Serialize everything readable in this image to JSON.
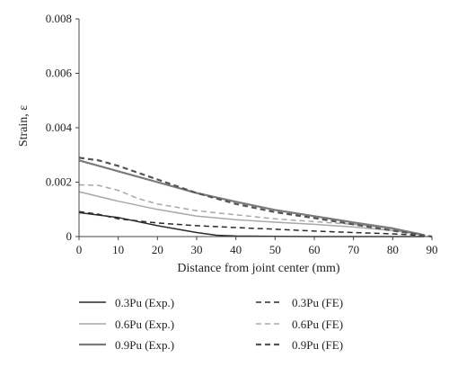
{
  "chart_data": {
    "type": "line",
    "xlabel": "Distance from joint center (mm)",
    "ylabel": "Strain, ε",
    "xlim": [
      0,
      90
    ],
    "ylim": [
      0,
      0.008
    ],
    "xticks": [
      0,
      10,
      20,
      30,
      40,
      50,
      60,
      70,
      80,
      90
    ],
    "yticks": [
      0,
      0.002,
      0.004,
      0.006,
      0.008
    ],
    "xtick_labels": [
      "0",
      "10",
      "20",
      "30",
      "40",
      "50",
      "60",
      "70",
      "80",
      "90"
    ],
    "ytick_labels": [
      "0",
      "0.002",
      "0.004",
      "0.006",
      "0.008"
    ],
    "grid": false,
    "legend_position": "bottom",
    "series": [
      {
        "name": "0.3Pu (Exp.)",
        "color": "#2b2b2b",
        "style": "solid",
        "x": [
          0,
          10,
          20,
          30,
          35,
          40,
          50,
          60,
          70,
          80,
          88
        ],
        "y": [
          0.00088,
          0.0007,
          0.0004,
          0.00015,
          5e-05,
          2e-05,
          1e-05,
          0.0,
          0.0,
          0.0,
          0.0
        ]
      },
      {
        "name": "0.3Pu (FE)",
        "color": "#2b2b2b",
        "style": "dashed",
        "x": [
          0,
          5,
          10,
          20,
          30,
          40,
          50,
          60,
          70,
          80,
          85,
          88,
          90
        ],
        "y": [
          0.00092,
          0.00082,
          0.00065,
          0.0005,
          0.0004,
          0.00033,
          0.00027,
          0.0002,
          0.00015,
          0.0001,
          6e-05,
          3e-05,
          0.0
        ]
      },
      {
        "name": "0.6Pu (Exp.)",
        "color": "#a8a8a8",
        "style": "solid",
        "x": [
          0,
          10,
          20,
          30,
          40,
          50,
          60,
          70,
          80,
          85
        ],
        "y": [
          0.00165,
          0.0013,
          0.001,
          0.00075,
          0.00062,
          0.00053,
          0.00045,
          0.00035,
          0.00022,
          0.00012
        ]
      },
      {
        "name": "0.6Pu (FE)",
        "color": "#a8a8a8",
        "style": "dashed",
        "x": [
          0,
          5,
          10,
          15,
          20,
          30,
          40,
          50,
          60,
          70,
          80,
          88
        ],
        "y": [
          0.0019,
          0.00188,
          0.0017,
          0.0014,
          0.0012,
          0.00095,
          0.0008,
          0.00065,
          0.00055,
          0.00045,
          0.0003,
          8e-05
        ]
      },
      {
        "name": "0.9Pu (Exp.)",
        "color": "#7a7a7a",
        "style": "solid",
        "x": [
          0,
          10,
          20,
          30,
          40,
          50,
          60,
          70,
          80,
          88
        ],
        "y": [
          0.0028,
          0.0024,
          0.002,
          0.0016,
          0.00128,
          0.00098,
          0.00075,
          0.00052,
          0.0003,
          5e-05
        ]
      },
      {
        "name": "0.9Pu (FE)",
        "color": "#555555",
        "style": "dashed",
        "x": [
          0,
          5,
          10,
          20,
          30,
          40,
          50,
          60,
          70,
          80,
          90
        ],
        "y": [
          0.0029,
          0.0028,
          0.0026,
          0.0021,
          0.0016,
          0.0012,
          0.0009,
          0.00068,
          0.00045,
          0.00022,
          0.0
        ]
      }
    ]
  }
}
